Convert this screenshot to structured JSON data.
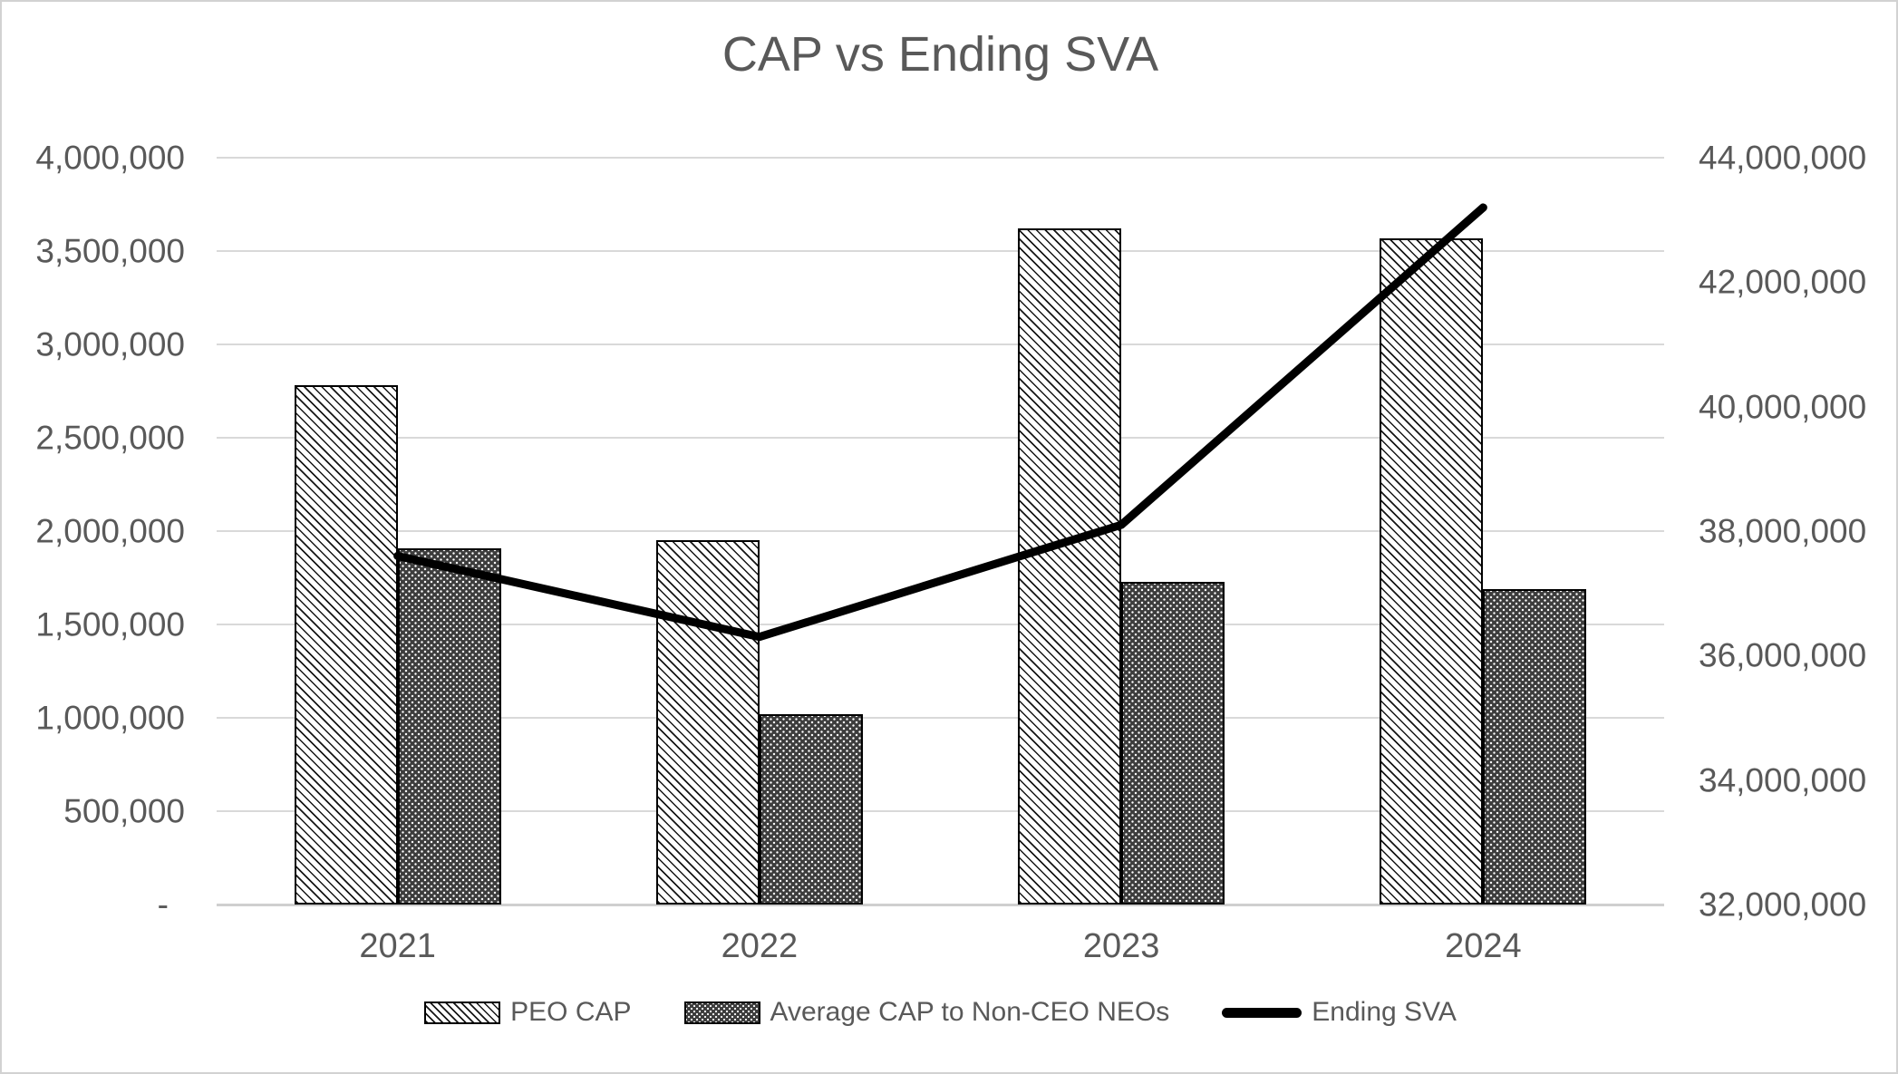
{
  "chart_data": {
    "type": "combo",
    "title": "CAP vs Ending SVA",
    "categories": [
      "2021",
      "2022",
      "2023",
      "2024"
    ],
    "series": [
      {
        "name": "PEO CAP",
        "type": "bar",
        "axis": "left",
        "style": "light-hatch",
        "values": [
          2780000,
          1950000,
          3620000,
          3570000
        ]
      },
      {
        "name": "Average CAP to Non-CEO NEOs",
        "type": "bar",
        "axis": "left",
        "style": "dark-dots",
        "values": [
          1910000,
          1020000,
          1730000,
          1690000
        ]
      },
      {
        "name": "Ending SVA",
        "type": "line",
        "axis": "right",
        "style": "black-line",
        "values": [
          37600000,
          36300000,
          38100000,
          43200000
        ]
      }
    ],
    "left_axis": {
      "min": 0,
      "max": 4000000,
      "step": 500000,
      "tick_labels": [
        "4,000,000",
        "3,500,000",
        "3,000,000",
        "2,500,000",
        "2,000,000",
        "1,500,000",
        "1,000,000",
        "500,000",
        "-"
      ]
    },
    "right_axis": {
      "min": 32000000,
      "max": 44000000,
      "step": 2000000,
      "tick_labels": [
        "44,000,000",
        "42,000,000",
        "40,000,000",
        "38,000,000",
        "36,000,000",
        "34,000,000",
        "32,000,000"
      ]
    },
    "legend": {
      "position": "bottom",
      "entries": [
        {
          "label": "PEO CAP",
          "swatch": "light-hatch"
        },
        {
          "label": "Average CAP to Non-CEO NEOs",
          "swatch": "dark-dots"
        },
        {
          "label": "Ending SVA",
          "swatch": "black-line"
        }
      ]
    },
    "grid": "horizontal",
    "colors": {
      "text": "#595959",
      "gridline": "#d9d9d9",
      "axis_line": "#cfcfcf",
      "bar_outline": "#000000",
      "line_series": "#000000",
      "dark_bar_fill": "#3d3d3d",
      "frame_border": "#d2d2d2"
    }
  }
}
